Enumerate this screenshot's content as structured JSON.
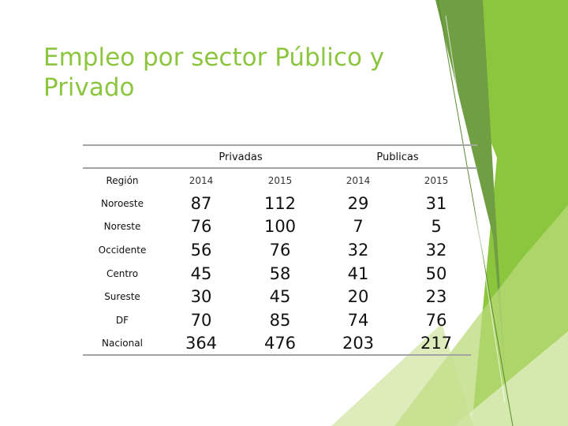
{
  "slide": {
    "title_line1": "Empleo por sector Público y",
    "title_line2": "Privado"
  },
  "table": {
    "group_headers": [
      "Privadas",
      "Publicas"
    ],
    "region_header": "Región",
    "year_headers": [
      "2014",
      "2015",
      "2014",
      "2015"
    ],
    "rows": [
      {
        "region": "Noroeste",
        "values": [
          "87",
          "112",
          "29",
          "31"
        ]
      },
      {
        "region": "Noreste",
        "values": [
          "76",
          "100",
          "7",
          "5"
        ]
      },
      {
        "region": "Occidente",
        "values": [
          "56",
          "76",
          "32",
          "32"
        ]
      },
      {
        "region": "Centro",
        "values": [
          "45",
          "58",
          "41",
          "50"
        ]
      },
      {
        "region": "Sureste",
        "values": [
          "30",
          "45",
          "20",
          "23"
        ]
      },
      {
        "region": "DF",
        "values": [
          "70",
          "85",
          "74",
          "76"
        ]
      },
      {
        "region": "Nacional",
        "values": [
          "364",
          "476",
          "203",
          "217"
        ]
      }
    ]
  },
  "theme": {
    "accent": "#8cc63f",
    "accent_dark": "#6a9a3a",
    "accent_light": "#c6e08c",
    "rule_color": "#a4a4a4"
  }
}
